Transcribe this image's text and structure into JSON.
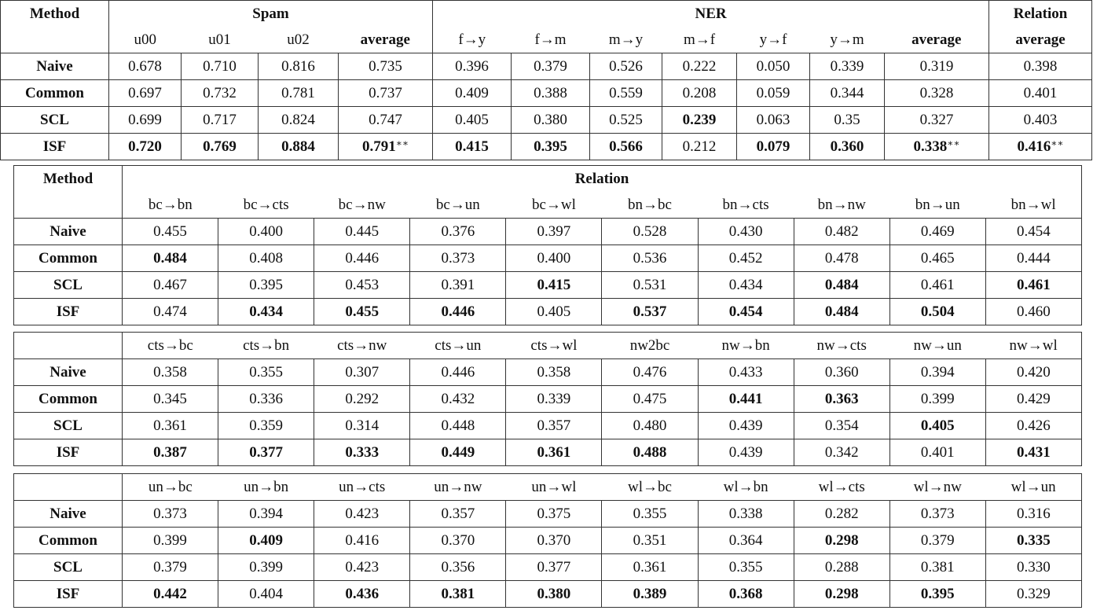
{
  "table1": {
    "method_header": "Method",
    "groups": [
      "Spam",
      "NER",
      "Relation"
    ],
    "columns": [
      "u00",
      "u01",
      "u02",
      "average",
      "f→y",
      "f→m",
      "m→y",
      "m→f",
      "y→f",
      "y→m",
      "average",
      "average"
    ],
    "bold_columns": [
      3,
      10,
      11
    ],
    "rows": [
      {
        "method": "Naive",
        "cells": [
          {
            "v": "0.678"
          },
          {
            "v": "0.710"
          },
          {
            "v": "0.816"
          },
          {
            "v": "0.735"
          },
          {
            "v": "0.396"
          },
          {
            "v": "0.379"
          },
          {
            "v": "0.526"
          },
          {
            "v": "0.222"
          },
          {
            "v": "0.050"
          },
          {
            "v": "0.339"
          },
          {
            "v": "0.319"
          },
          {
            "v": "0.398"
          }
        ]
      },
      {
        "method": "Common",
        "cells": [
          {
            "v": "0.697"
          },
          {
            "v": "0.732"
          },
          {
            "v": "0.781"
          },
          {
            "v": "0.737"
          },
          {
            "v": "0.409"
          },
          {
            "v": "0.388"
          },
          {
            "v": "0.559"
          },
          {
            "v": "0.208"
          },
          {
            "v": "0.059"
          },
          {
            "v": "0.344"
          },
          {
            "v": "0.328"
          },
          {
            "v": "0.401"
          }
        ]
      },
      {
        "method": "SCL",
        "cells": [
          {
            "v": "0.699"
          },
          {
            "v": "0.717"
          },
          {
            "v": "0.824"
          },
          {
            "v": "0.747"
          },
          {
            "v": "0.405"
          },
          {
            "v": "0.380"
          },
          {
            "v": "0.525"
          },
          {
            "v": "0.239",
            "b": true
          },
          {
            "v": "0.063"
          },
          {
            "v": "0.35"
          },
          {
            "v": "0.327"
          },
          {
            "v": "0.403"
          }
        ]
      },
      {
        "method": "ISF",
        "cells": [
          {
            "v": "0.720",
            "b": true
          },
          {
            "v": "0.769",
            "b": true
          },
          {
            "v": "0.884",
            "b": true
          },
          {
            "v": "0.791",
            "b": true,
            "sup": "∗∗"
          },
          {
            "v": "0.415",
            "b": true
          },
          {
            "v": "0.395",
            "b": true
          },
          {
            "v": "0.566",
            "b": true
          },
          {
            "v": "0.212"
          },
          {
            "v": "0.079",
            "b": true
          },
          {
            "v": "0.360",
            "b": true
          },
          {
            "v": "0.338",
            "b": true,
            "sup": "∗∗"
          },
          {
            "v": "0.416",
            "b": true,
            "sup": "∗∗"
          }
        ]
      }
    ]
  },
  "relation_tables": [
    {
      "method_header": "Method",
      "group": "Relation",
      "columns": [
        "bc→bn",
        "bc→cts",
        "bc→nw",
        "bc→un",
        "bc→wl",
        "bn→bc",
        "bn→cts",
        "bn→nw",
        "bn→un",
        "bn→wl"
      ],
      "rows": [
        {
          "method": "Naive",
          "cells": [
            {
              "v": "0.455"
            },
            {
              "v": "0.400"
            },
            {
              "v": "0.445"
            },
            {
              "v": "0.376"
            },
            {
              "v": "0.397"
            },
            {
              "v": "0.528"
            },
            {
              "v": "0.430"
            },
            {
              "v": "0.482"
            },
            {
              "v": "0.469"
            },
            {
              "v": "0.454"
            }
          ]
        },
        {
          "method": "Common",
          "cells": [
            {
              "v": "0.484",
              "b": true
            },
            {
              "v": "0.408"
            },
            {
              "v": "0.446"
            },
            {
              "v": "0.373"
            },
            {
              "v": "0.400"
            },
            {
              "v": "0.536"
            },
            {
              "v": "0.452"
            },
            {
              "v": "0.478"
            },
            {
              "v": "0.465"
            },
            {
              "v": "0.444"
            }
          ]
        },
        {
          "method": "SCL",
          "cells": [
            {
              "v": "0.467"
            },
            {
              "v": "0.395"
            },
            {
              "v": "0.453"
            },
            {
              "v": "0.391"
            },
            {
              "v": "0.415",
              "b": true
            },
            {
              "v": "0.531"
            },
            {
              "v": "0.434"
            },
            {
              "v": "0.484",
              "b": true
            },
            {
              "v": "0.461"
            },
            {
              "v": "0.461",
              "b": true
            }
          ]
        },
        {
          "method": "ISF",
          "cells": [
            {
              "v": "0.474"
            },
            {
              "v": "0.434",
              "b": true
            },
            {
              "v": "0.455",
              "b": true
            },
            {
              "v": "0.446",
              "b": true
            },
            {
              "v": "0.405"
            },
            {
              "v": "0.537",
              "b": true
            },
            {
              "v": "0.454",
              "b": true
            },
            {
              "v": "0.484",
              "b": true
            },
            {
              "v": "0.504",
              "b": true
            },
            {
              "v": "0.460"
            }
          ]
        }
      ]
    },
    {
      "columns": [
        "cts→bc",
        "cts→bn",
        "cts→nw",
        "cts→un",
        "cts→wl",
        "nw2bc",
        "nw→bn",
        "nw→cts",
        "nw→un",
        "nw→wl"
      ],
      "rows": [
        {
          "method": "Naive",
          "cells": [
            {
              "v": "0.358"
            },
            {
              "v": "0.355"
            },
            {
              "v": "0.307"
            },
            {
              "v": "0.446"
            },
            {
              "v": "0.358"
            },
            {
              "v": "0.476"
            },
            {
              "v": "0.433"
            },
            {
              "v": "0.360"
            },
            {
              "v": "0.394"
            },
            {
              "v": "0.420"
            }
          ]
        },
        {
          "method": "Common",
          "cells": [
            {
              "v": "0.345"
            },
            {
              "v": "0.336"
            },
            {
              "v": "0.292"
            },
            {
              "v": "0.432"
            },
            {
              "v": "0.339"
            },
            {
              "v": "0.475"
            },
            {
              "v": "0.441",
              "b": true
            },
            {
              "v": "0.363",
              "b": true
            },
            {
              "v": "0.399"
            },
            {
              "v": "0.429"
            }
          ]
        },
        {
          "method": "SCL",
          "cells": [
            {
              "v": "0.361"
            },
            {
              "v": "0.359"
            },
            {
              "v": "0.314"
            },
            {
              "v": "0.448"
            },
            {
              "v": "0.357"
            },
            {
              "v": "0.480"
            },
            {
              "v": "0.439"
            },
            {
              "v": "0.354"
            },
            {
              "v": "0.405",
              "b": true
            },
            {
              "v": "0.426"
            }
          ]
        },
        {
          "method": "ISF",
          "cells": [
            {
              "v": "0.387",
              "b": true
            },
            {
              "v": "0.377",
              "b": true
            },
            {
              "v": "0.333",
              "b": true
            },
            {
              "v": "0.449",
              "b": true
            },
            {
              "v": "0.361",
              "b": true
            },
            {
              "v": "0.488",
              "b": true
            },
            {
              "v": "0.439"
            },
            {
              "v": "0.342"
            },
            {
              "v": "0.401"
            },
            {
              "v": "0.431",
              "b": true
            }
          ]
        }
      ]
    },
    {
      "columns": [
        "un→bc",
        "un→bn",
        "un→cts",
        "un→nw",
        "un→wl",
        "wl→bc",
        "wl→bn",
        "wl→cts",
        "wl→nw",
        "wl→un"
      ],
      "rows": [
        {
          "method": "Naive",
          "cells": [
            {
              "v": "0.373"
            },
            {
              "v": "0.394"
            },
            {
              "v": "0.423"
            },
            {
              "v": "0.357"
            },
            {
              "v": "0.375"
            },
            {
              "v": "0.355"
            },
            {
              "v": "0.338"
            },
            {
              "v": "0.282"
            },
            {
              "v": "0.373"
            },
            {
              "v": "0.316"
            }
          ]
        },
        {
          "method": "Common",
          "cells": [
            {
              "v": "0.399"
            },
            {
              "v": "0.409",
              "b": true
            },
            {
              "v": "0.416"
            },
            {
              "v": "0.370"
            },
            {
              "v": "0.370"
            },
            {
              "v": "0.351"
            },
            {
              "v": "0.364"
            },
            {
              "v": "0.298",
              "b": true
            },
            {
              "v": "0.379"
            },
            {
              "v": "0.335",
              "b": true
            }
          ]
        },
        {
          "method": "SCL",
          "cells": [
            {
              "v": "0.379"
            },
            {
              "v": "0.399"
            },
            {
              "v": "0.423"
            },
            {
              "v": "0.356"
            },
            {
              "v": "0.377"
            },
            {
              "v": "0.361"
            },
            {
              "v": "0.355"
            },
            {
              "v": "0.288"
            },
            {
              "v": "0.381"
            },
            {
              "v": "0.330"
            }
          ]
        },
        {
          "method": "ISF",
          "cells": [
            {
              "v": "0.442",
              "b": true
            },
            {
              "v": "0.404"
            },
            {
              "v": "0.436",
              "b": true
            },
            {
              "v": "0.381",
              "b": true
            },
            {
              "v": "0.380",
              "b": true
            },
            {
              "v": "0.389",
              "b": true
            },
            {
              "v": "0.368",
              "b": true
            },
            {
              "v": "0.298",
              "b": true
            },
            {
              "v": "0.395",
              "b": true
            },
            {
              "v": "0.329"
            }
          ]
        }
      ]
    }
  ]
}
